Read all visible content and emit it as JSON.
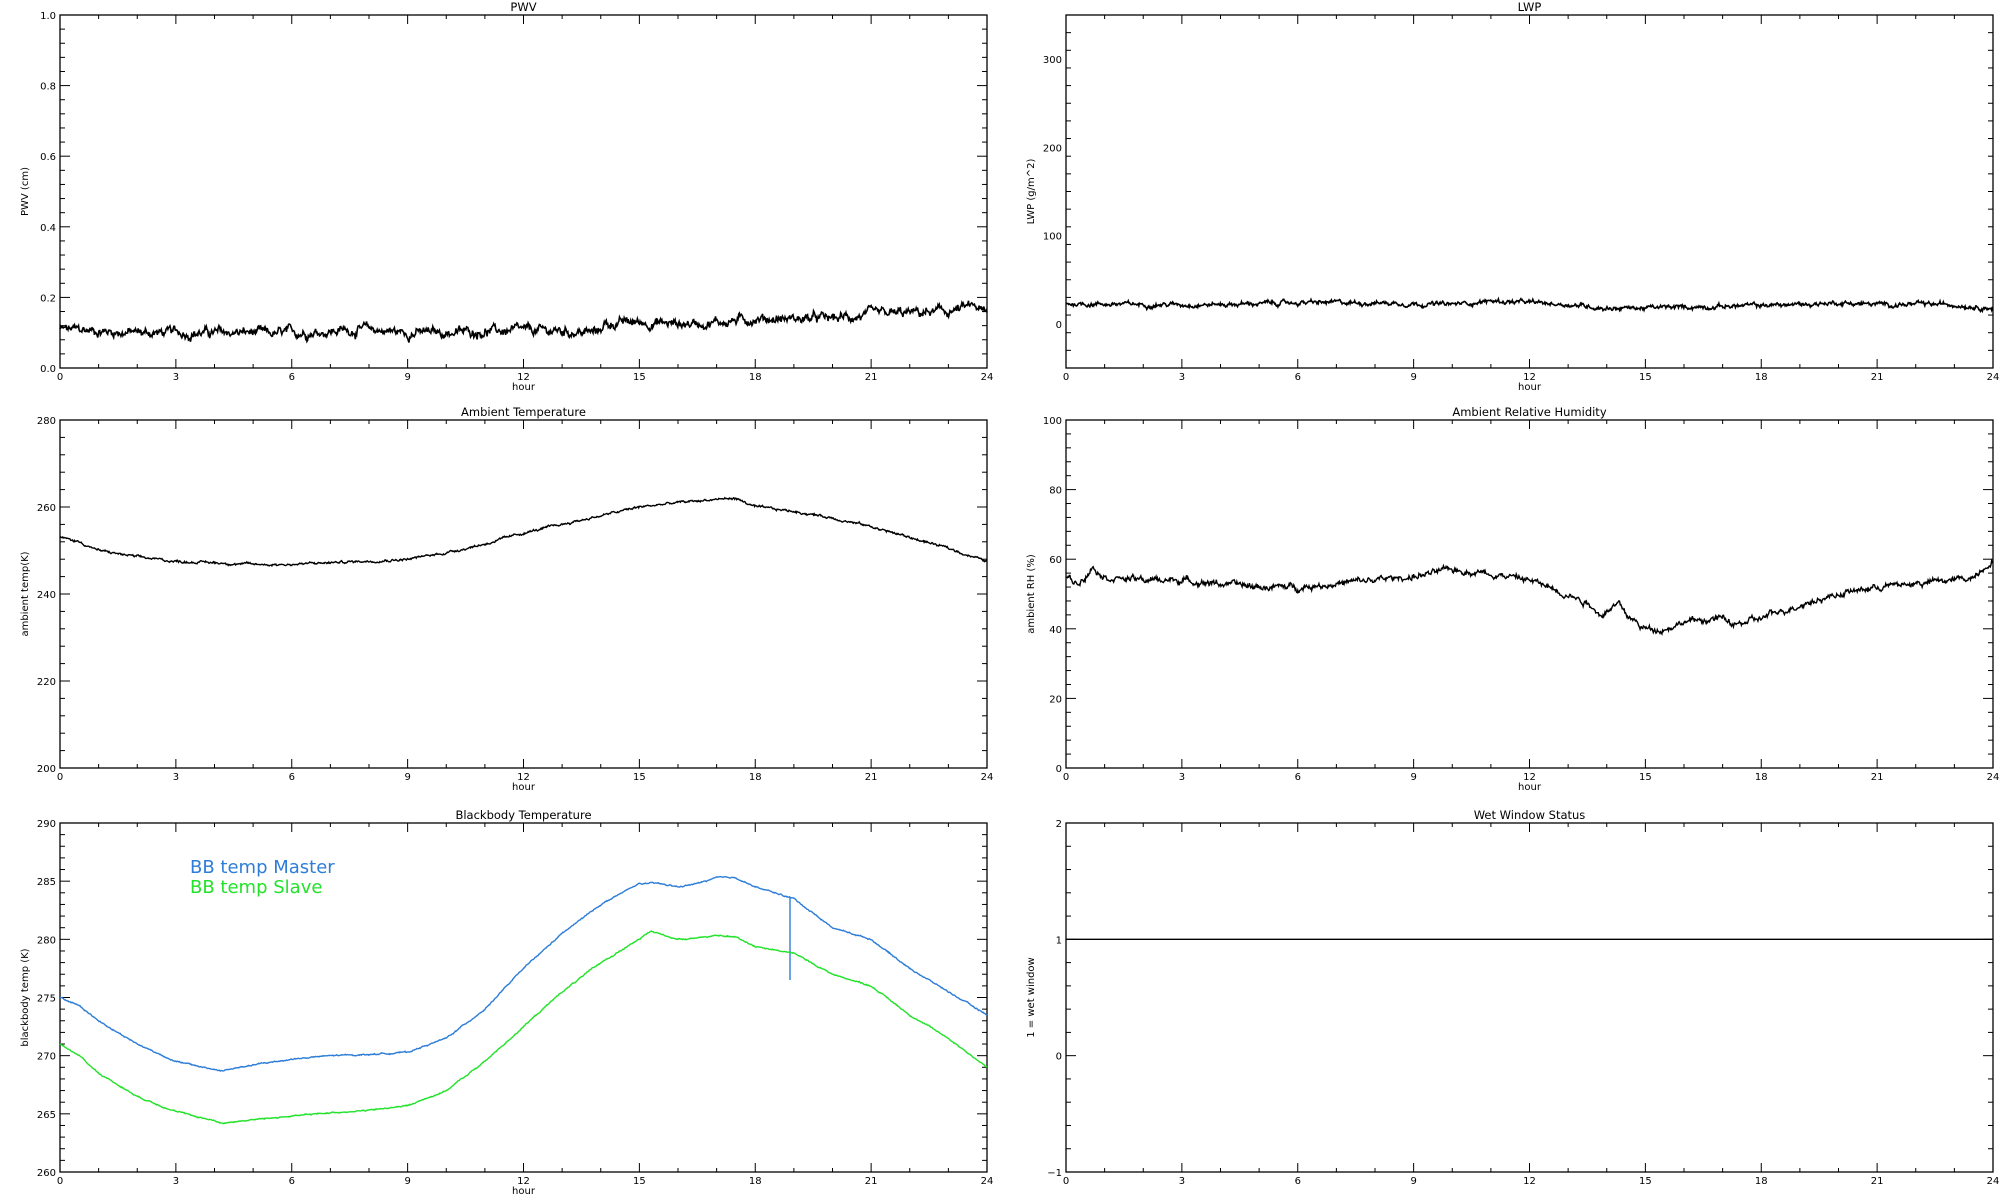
{
  "chart_data": [
    {
      "id": "pwv",
      "type": "line",
      "title": "PWV",
      "xlabel": "hour",
      "ylabel": "PWV (cm)",
      "xlim": [
        0,
        24
      ],
      "ylim": [
        0.0,
        1.0
      ],
      "xticks": [
        0,
        3,
        6,
        9,
        12,
        15,
        18,
        21,
        24
      ],
      "xticklabels": [
        "0",
        "3",
        "6",
        "9",
        "12",
        "15",
        "18",
        "21",
        "24"
      ],
      "yticks": [
        0.0,
        0.2,
        0.4,
        0.6,
        0.8,
        1.0
      ],
      "yticklabels": [
        "0.0",
        "0.2",
        "0.4",
        "0.6",
        "0.8",
        "1.0"
      ],
      "grid": false,
      "series": [
        {
          "color": "#000000",
          "noise": 0.012,
          "x": [
            0,
            1,
            2,
            3,
            4,
            5,
            5.5,
            6,
            7,
            8,
            9,
            10,
            11,
            12,
            13,
            13.9,
            14.1,
            15,
            16,
            17,
            18,
            19,
            20,
            21,
            22,
            23,
            23.7,
            24
          ],
          "y": [
            0.11,
            0.105,
            0.1,
            0.1,
            0.1,
            0.1,
            0.095,
            0.1,
            0.105,
            0.11,
            0.1,
            0.1,
            0.105,
            0.105,
            0.105,
            0.1,
            0.125,
            0.13,
            0.125,
            0.13,
            0.14,
            0.14,
            0.14,
            0.15,
            0.155,
            0.16,
            0.175,
            0.15
          ]
        }
      ]
    },
    {
      "id": "lwp",
      "type": "line",
      "title": "LWP",
      "xlabel": "hour",
      "ylabel": "LWP (g/m^2)",
      "xlim": [
        0,
        24
      ],
      "ylim": [
        -50,
        350
      ],
      "xticks": [
        0,
        3,
        6,
        9,
        12,
        15,
        18,
        21,
        24
      ],
      "xticklabels": [
        "0",
        "3",
        "6",
        "9",
        "12",
        "15",
        "18",
        "21",
        "24"
      ],
      "yticks": [
        0,
        100,
        200,
        300
      ],
      "yticklabels": [
        "0",
        "100",
        "200",
        "300"
      ],
      "grid": false,
      "series": [
        {
          "color": "#000000",
          "noise": 2.2,
          "x": [
            0,
            2,
            4,
            6,
            8,
            10,
            11,
            12,
            13,
            14,
            15,
            16,
            17,
            18,
            19,
            20,
            21,
            22,
            23,
            24
          ],
          "y": [
            23,
            22,
            22,
            24,
            24,
            22,
            26,
            24,
            22,
            18,
            18,
            19,
            20,
            21,
            22,
            24,
            22,
            22,
            22,
            18
          ]
        }
      ]
    },
    {
      "id": "ambient_temp",
      "type": "line",
      "title": "Ambient Temperature",
      "xlabel": "hour",
      "ylabel": "ambient temp(K)",
      "xlim": [
        0,
        24
      ],
      "ylim": [
        200,
        280
      ],
      "xticks": [
        0,
        3,
        6,
        9,
        12,
        15,
        18,
        21,
        24
      ],
      "xticklabels": [
        "0",
        "3",
        "6",
        "9",
        "12",
        "15",
        "18",
        "21",
        "24"
      ],
      "yticks": [
        200,
        220,
        240,
        260,
        280
      ],
      "yticklabels": [
        "200",
        "220",
        "240",
        "260",
        "280"
      ],
      "grid": false,
      "series": [
        {
          "color": "#000000",
          "noise": 0.25,
          "x": [
            0,
            0.5,
            1,
            2,
            3,
            4,
            5,
            6,
            7,
            8,
            9,
            10,
            11,
            12,
            13,
            14,
            15,
            16,
            17,
            17.5,
            18,
            19,
            20,
            21,
            22,
            23,
            24
          ],
          "y": [
            253,
            252,
            250,
            248.5,
            247.5,
            247.2,
            246.8,
            246.8,
            247.2,
            247.6,
            248,
            249.5,
            251.5,
            254,
            256,
            258,
            260,
            261,
            261.8,
            262,
            260,
            259,
            257.5,
            255.5,
            253,
            250.5,
            247.5
          ]
        }
      ]
    },
    {
      "id": "ambient_rh",
      "type": "line",
      "title": "Ambient Relative Humidity",
      "xlabel": "hour",
      "ylabel": "ambient RH (%)",
      "xlim": [
        0,
        24
      ],
      "ylim": [
        0,
        100
      ],
      "xticks": [
        0,
        3,
        6,
        9,
        12,
        15,
        18,
        21,
        24
      ],
      "xticklabels": [
        "0",
        "3",
        "6",
        "9",
        "12",
        "15",
        "18",
        "21",
        "24"
      ],
      "yticks": [
        0,
        20,
        40,
        60,
        80,
        100
      ],
      "yticklabels": [
        "0",
        "20",
        "40",
        "60",
        "80",
        "100"
      ],
      "grid": false,
      "series": [
        {
          "color": "#000000",
          "noise": 0.8,
          "x": [
            0,
            0.3,
            0.7,
            1,
            2,
            3,
            4,
            5,
            6,
            7,
            8,
            9,
            10,
            11,
            12,
            13,
            13.6,
            13.8,
            14.3,
            14.6,
            15,
            15.5,
            16,
            17,
            17.3,
            18,
            19,
            20,
            21,
            22,
            23,
            23.5,
            24
          ],
          "y": [
            55,
            53,
            58,
            55,
            54,
            54,
            53,
            52,
            52,
            53,
            54,
            55,
            57,
            56,
            54,
            50,
            47,
            44,
            47,
            43,
            40,
            40,
            42,
            43,
            41,
            43,
            47,
            50,
            52,
            53,
            54,
            55,
            60
          ]
        }
      ]
    },
    {
      "id": "bb_temp",
      "type": "line",
      "title": "Blackbody Temperature",
      "xlabel": "hour",
      "ylabel": "blackbody temp (K)",
      "xlim": [
        0,
        24
      ],
      "ylim": [
        260,
        290
      ],
      "xticks": [
        0,
        3,
        6,
        9,
        12,
        15,
        18,
        21,
        24
      ],
      "xticklabels": [
        "0",
        "3",
        "6",
        "9",
        "12",
        "15",
        "18",
        "21",
        "24"
      ],
      "yticks": [
        260,
        265,
        270,
        275,
        280,
        285,
        290
      ],
      "yticklabels": [
        "260",
        "265",
        "270",
        "275",
        "280",
        "285",
        "290"
      ],
      "grid": false,
      "legend": "top-left",
      "series": [
        {
          "name": "BB temp Master",
          "color": "#2e7dd7",
          "noise": 0.05,
          "x": [
            0,
            0.5,
            1,
            2,
            3,
            4,
            4.2,
            5,
            6,
            7,
            8,
            9,
            10,
            11,
            12,
            13,
            14,
            15,
            15.5,
            16,
            16.5,
            17,
            17.5,
            18,
            18.9,
            19,
            20,
            21,
            22,
            23,
            24
          ],
          "y": [
            275,
            274.3,
            273,
            271,
            269.5,
            268.8,
            268.7,
            269.2,
            269.7,
            270,
            270.1,
            270.3,
            271.5,
            274,
            277.5,
            280.5,
            283,
            284.8,
            284.8,
            284.5,
            284.8,
            285.3,
            285.3,
            284.5,
            283.6,
            283.5,
            281,
            280,
            277.5,
            275.5,
            273.5
          ],
          "spike": {
            "x": 18.9,
            "y_from": 276.5,
            "y_to": 283.6
          }
        },
        {
          "name": "BB temp Slave",
          "color": "#22e22a",
          "noise": 0.05,
          "x": [
            0,
            0.5,
            1,
            2,
            3,
            4,
            4.2,
            5,
            6,
            7,
            8,
            9,
            10,
            11,
            12,
            13,
            14,
            15,
            15.3,
            16,
            17,
            17.5,
            18,
            19,
            20,
            21,
            22,
            23,
            24
          ],
          "y": [
            271,
            270,
            268.5,
            266.5,
            265.2,
            264.4,
            264.2,
            264.5,
            264.8,
            265.1,
            265.3,
            265.7,
            267,
            269.5,
            272.5,
            275.5,
            278,
            280,
            280.7,
            280,
            280.3,
            280.2,
            279.4,
            278.8,
            277,
            276,
            273.5,
            271.5,
            269
          ]
        }
      ]
    },
    {
      "id": "wet_window",
      "type": "line",
      "title": "Wet Window Status",
      "xlabel": "",
      "ylabel": "1 = wet window",
      "xlim": [
        0,
        24
      ],
      "ylim": [
        -1,
        2
      ],
      "xticks": [
        0,
        3,
        6,
        9,
        12,
        15,
        18,
        21,
        24
      ],
      "xticklabels": [
        "0",
        "3",
        "6",
        "9",
        "12",
        "15",
        "18",
        "21",
        "24"
      ],
      "yticks": [
        -1,
        0,
        1,
        2
      ],
      "yticklabels": [
        "−1",
        "0",
        "1",
        "2"
      ],
      "grid": false,
      "series": [
        {
          "color": "#000000",
          "noise": 0,
          "x": [
            0,
            24
          ],
          "y": [
            1,
            1
          ]
        }
      ]
    }
  ]
}
